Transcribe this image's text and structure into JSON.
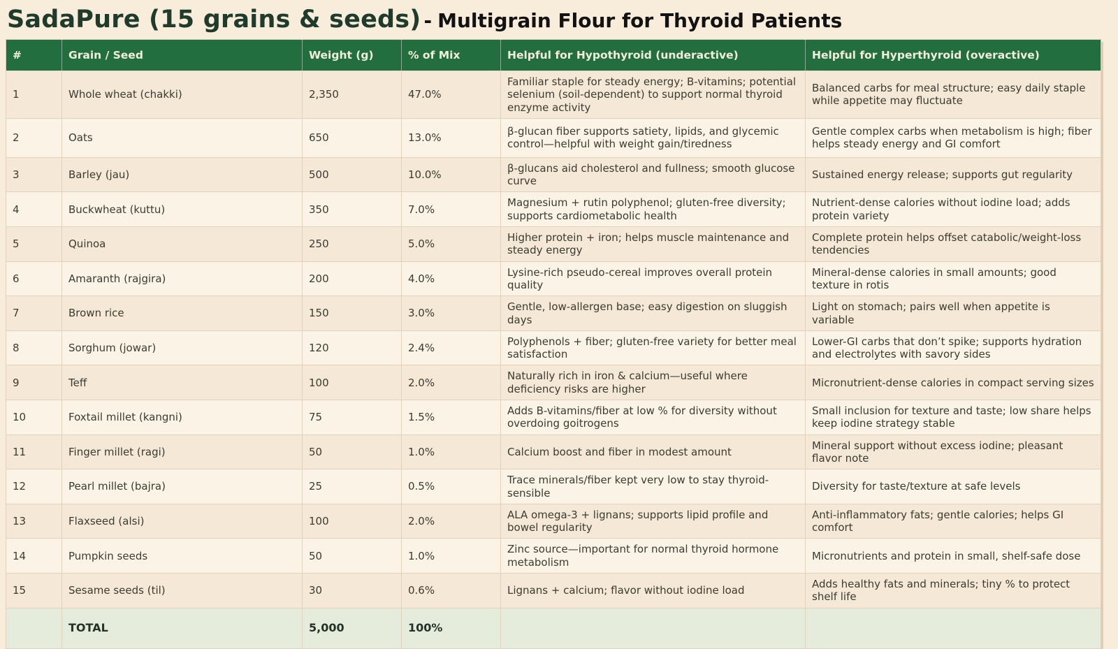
{
  "title": {
    "brand": "SadaPure (15 grains & seeds)",
    "separator": "-",
    "subtitle": "Multigrain Flour for Thyroid Patients"
  },
  "colors": {
    "header_green": "#226e3f",
    "title_green": "#1e3b2c",
    "page_background": "#f8ecdb",
    "row_odd": "#f5e8d6",
    "row_even": "#fbf4e6",
    "total_row_background": "#e6ecdc"
  },
  "table": {
    "columns": [
      "#",
      "Grain / Seed",
      "Weight (g)",
      "% of Mix",
      "Helpful for Hypothyroid (underactive)",
      "Helpful for Hyperthyroid (overactive)"
    ],
    "rows": [
      {
        "num": "1",
        "name": "Whole wheat (chakki)",
        "weight": "2,350",
        "pct": "47.0%",
        "hypo": "Familiar staple for steady energy; B-vitamins; potential selenium (soil-dependent) to support normal thyroid enzyme activity",
        "hyper": "Balanced carbs for meal structure; easy daily staple while appetite may fluctuate"
      },
      {
        "num": "2",
        "name": "Oats",
        "weight": "650",
        "pct": "13.0%",
        "hypo": "β-glucan fiber supports satiety, lipids, and glycemic control—helpful with weight gain/tiredness",
        "hyper": "Gentle complex carbs when metabolism is high; fiber helps steady energy and GI comfort"
      },
      {
        "num": "3",
        "name": "Barley (jau)",
        "weight": "500",
        "pct": "10.0%",
        "hypo": "β-glucans aid cholesterol and fullness; smooth glucose curve",
        "hyper": "Sustained energy release; supports gut regularity"
      },
      {
        "num": "4",
        "name": "Buckwheat (kuttu)",
        "weight": "350",
        "pct": "7.0%",
        "hypo": "Magnesium + rutin polyphenol; gluten-free diversity; supports cardiometabolic health",
        "hyper": "Nutrient-dense calories without iodine load; adds protein variety"
      },
      {
        "num": "5",
        "name": "Quinoa",
        "weight": "250",
        "pct": "5.0%",
        "hypo": "Higher protein + iron; helps muscle maintenance and steady energy",
        "hyper": "Complete protein helps offset catabolic/weight-loss tendencies"
      },
      {
        "num": "6",
        "name": "Amaranth (rajgira)",
        "weight": "200",
        "pct": "4.0%",
        "hypo": "Lysine-rich pseudo-cereal improves overall protein quality",
        "hyper": "Mineral-dense calories in small amounts; good texture in rotis"
      },
      {
        "num": "7",
        "name": "Brown rice",
        "weight": "150",
        "pct": "3.0%",
        "hypo": "Gentle, low-allergen base; easy digestion on sluggish days",
        "hyper": "Light on stomach; pairs well when appetite is variable"
      },
      {
        "num": "8",
        "name": "Sorghum (jowar)",
        "weight": "120",
        "pct": "2.4%",
        "hypo": "Polyphenols + fiber; gluten-free variety for better meal satisfaction",
        "hyper": "Lower-GI carbs that don’t spike; supports hydration and electrolytes with savory sides"
      },
      {
        "num": "9",
        "name": "Teff",
        "weight": "100",
        "pct": "2.0%",
        "hypo": "Naturally rich in iron & calcium—useful where deficiency risks are higher",
        "hyper": "Micronutrient-dense calories in compact serving sizes"
      },
      {
        "num": "10",
        "name": "Foxtail millet (kangni)",
        "weight": "75",
        "pct": "1.5%",
        "hypo": "Adds B-vitamins/fiber at low % for diversity without overdoing goitrogens",
        "hyper": "Small inclusion for texture and taste; low share helps keep iodine strategy stable"
      },
      {
        "num": "11",
        "name": "Finger millet (ragi)",
        "weight": "50",
        "pct": "1.0%",
        "hypo": "Calcium boost and fiber in modest amount",
        "hyper": "Mineral support without excess iodine; pleasant flavor note"
      },
      {
        "num": "12",
        "name": "Pearl millet (bajra)",
        "weight": "25",
        "pct": "0.5%",
        "hypo": "Trace minerals/fiber kept very low to stay thyroid-sensible",
        "hyper": "Diversity for taste/texture at safe levels"
      },
      {
        "num": "13",
        "name": "Flaxseed (alsi)",
        "weight": "100",
        "pct": "2.0%",
        "hypo": "ALA omega-3 + lignans; supports lipid profile and bowel regularity",
        "hyper": "Anti-inflammatory fats; gentle calories; helps GI comfort"
      },
      {
        "num": "14",
        "name": "Pumpkin seeds",
        "weight": "50",
        "pct": "1.0%",
        "hypo": "Zinc source—important for normal thyroid hormone metabolism",
        "hyper": "Micronutrients and protein in small, shelf-safe dose"
      },
      {
        "num": "15",
        "name": "Sesame seeds (til)",
        "weight": "30",
        "pct": "0.6%",
        "hypo": "Lignans + calcium; flavor without iodine load",
        "hyper": "Adds healthy fats and minerals; tiny % to protect shelf life"
      }
    ],
    "total": {
      "label": "TOTAL",
      "weight": "5,000",
      "pct": "100%"
    }
  }
}
